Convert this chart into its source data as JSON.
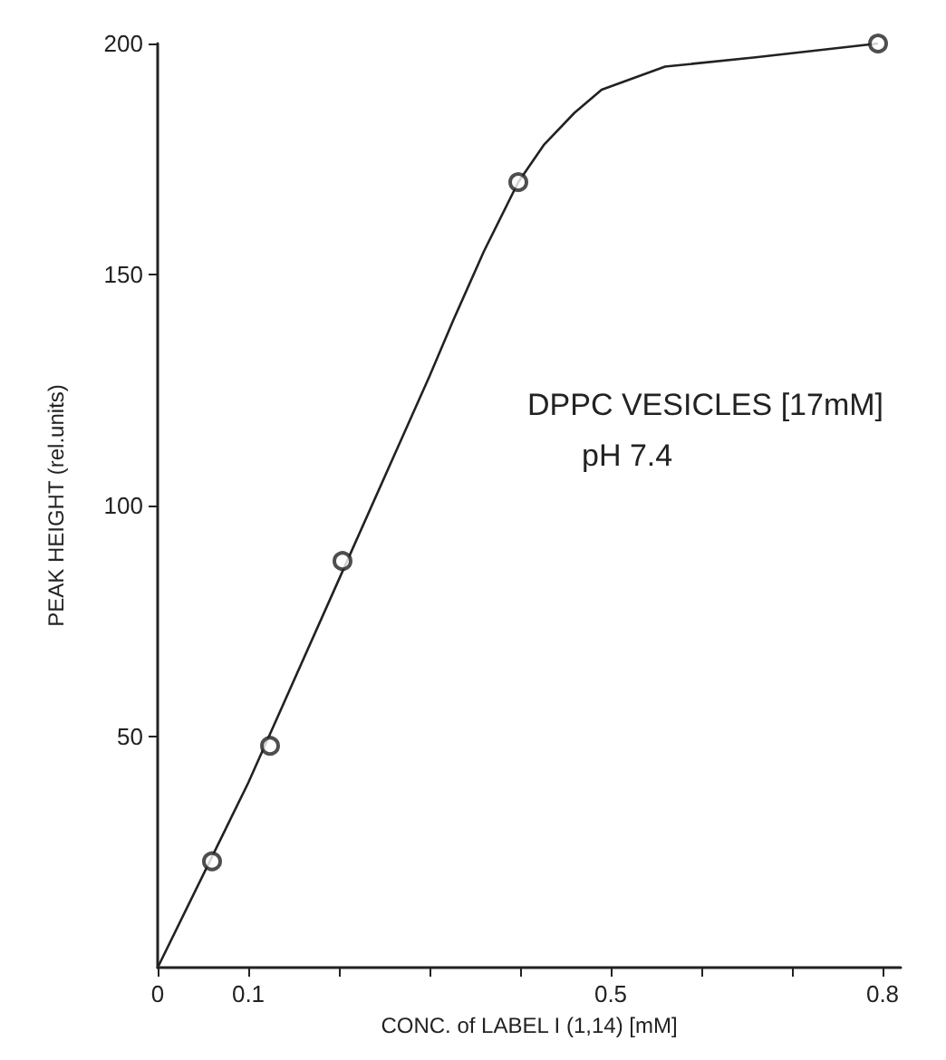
{
  "chart_data": {
    "type": "scatter",
    "xlabel": "CONC. of LABEL I (1,14) [mM]",
    "ylabel": "PEAK HEIGHT (rel.units)",
    "annotations": [
      "DPPC VESICLES [17mM]",
      "pH 7.4"
    ],
    "xlim": [
      0,
      0.82
    ],
    "ylim": [
      0,
      200
    ],
    "xticks": [
      0,
      0.1,
      {
        "value": 0.2,
        "label": null
      },
      {
        "value": 0.3,
        "label": null
      },
      {
        "value": 0.4,
        "label": null
      },
      0.5,
      {
        "value": 0.6,
        "label": null
      },
      {
        "value": 0.7,
        "label": null
      },
      0.8
    ],
    "yticks": [
      50,
      100,
      150,
      200
    ],
    "grid": false,
    "marker": "circle",
    "series": [
      {
        "type": "line",
        "color": "#222222",
        "marker": "none",
        "x": [
          0,
          0.1,
          0.2,
          0.3,
          0.326,
          0.36,
          0.398,
          0.426,
          0.46,
          0.49,
          0.56,
          0.66,
          0.795
        ],
        "values": [
          0,
          40,
          84,
          128,
          140,
          155,
          170,
          178,
          185,
          190,
          195,
          197,
          200
        ]
      },
      {
        "color": "#222222",
        "x": [
          0.06,
          0.124,
          0.204,
          0.398,
          0.795
        ],
        "values": [
          23,
          48,
          88,
          170,
          200
        ]
      }
    ]
  }
}
